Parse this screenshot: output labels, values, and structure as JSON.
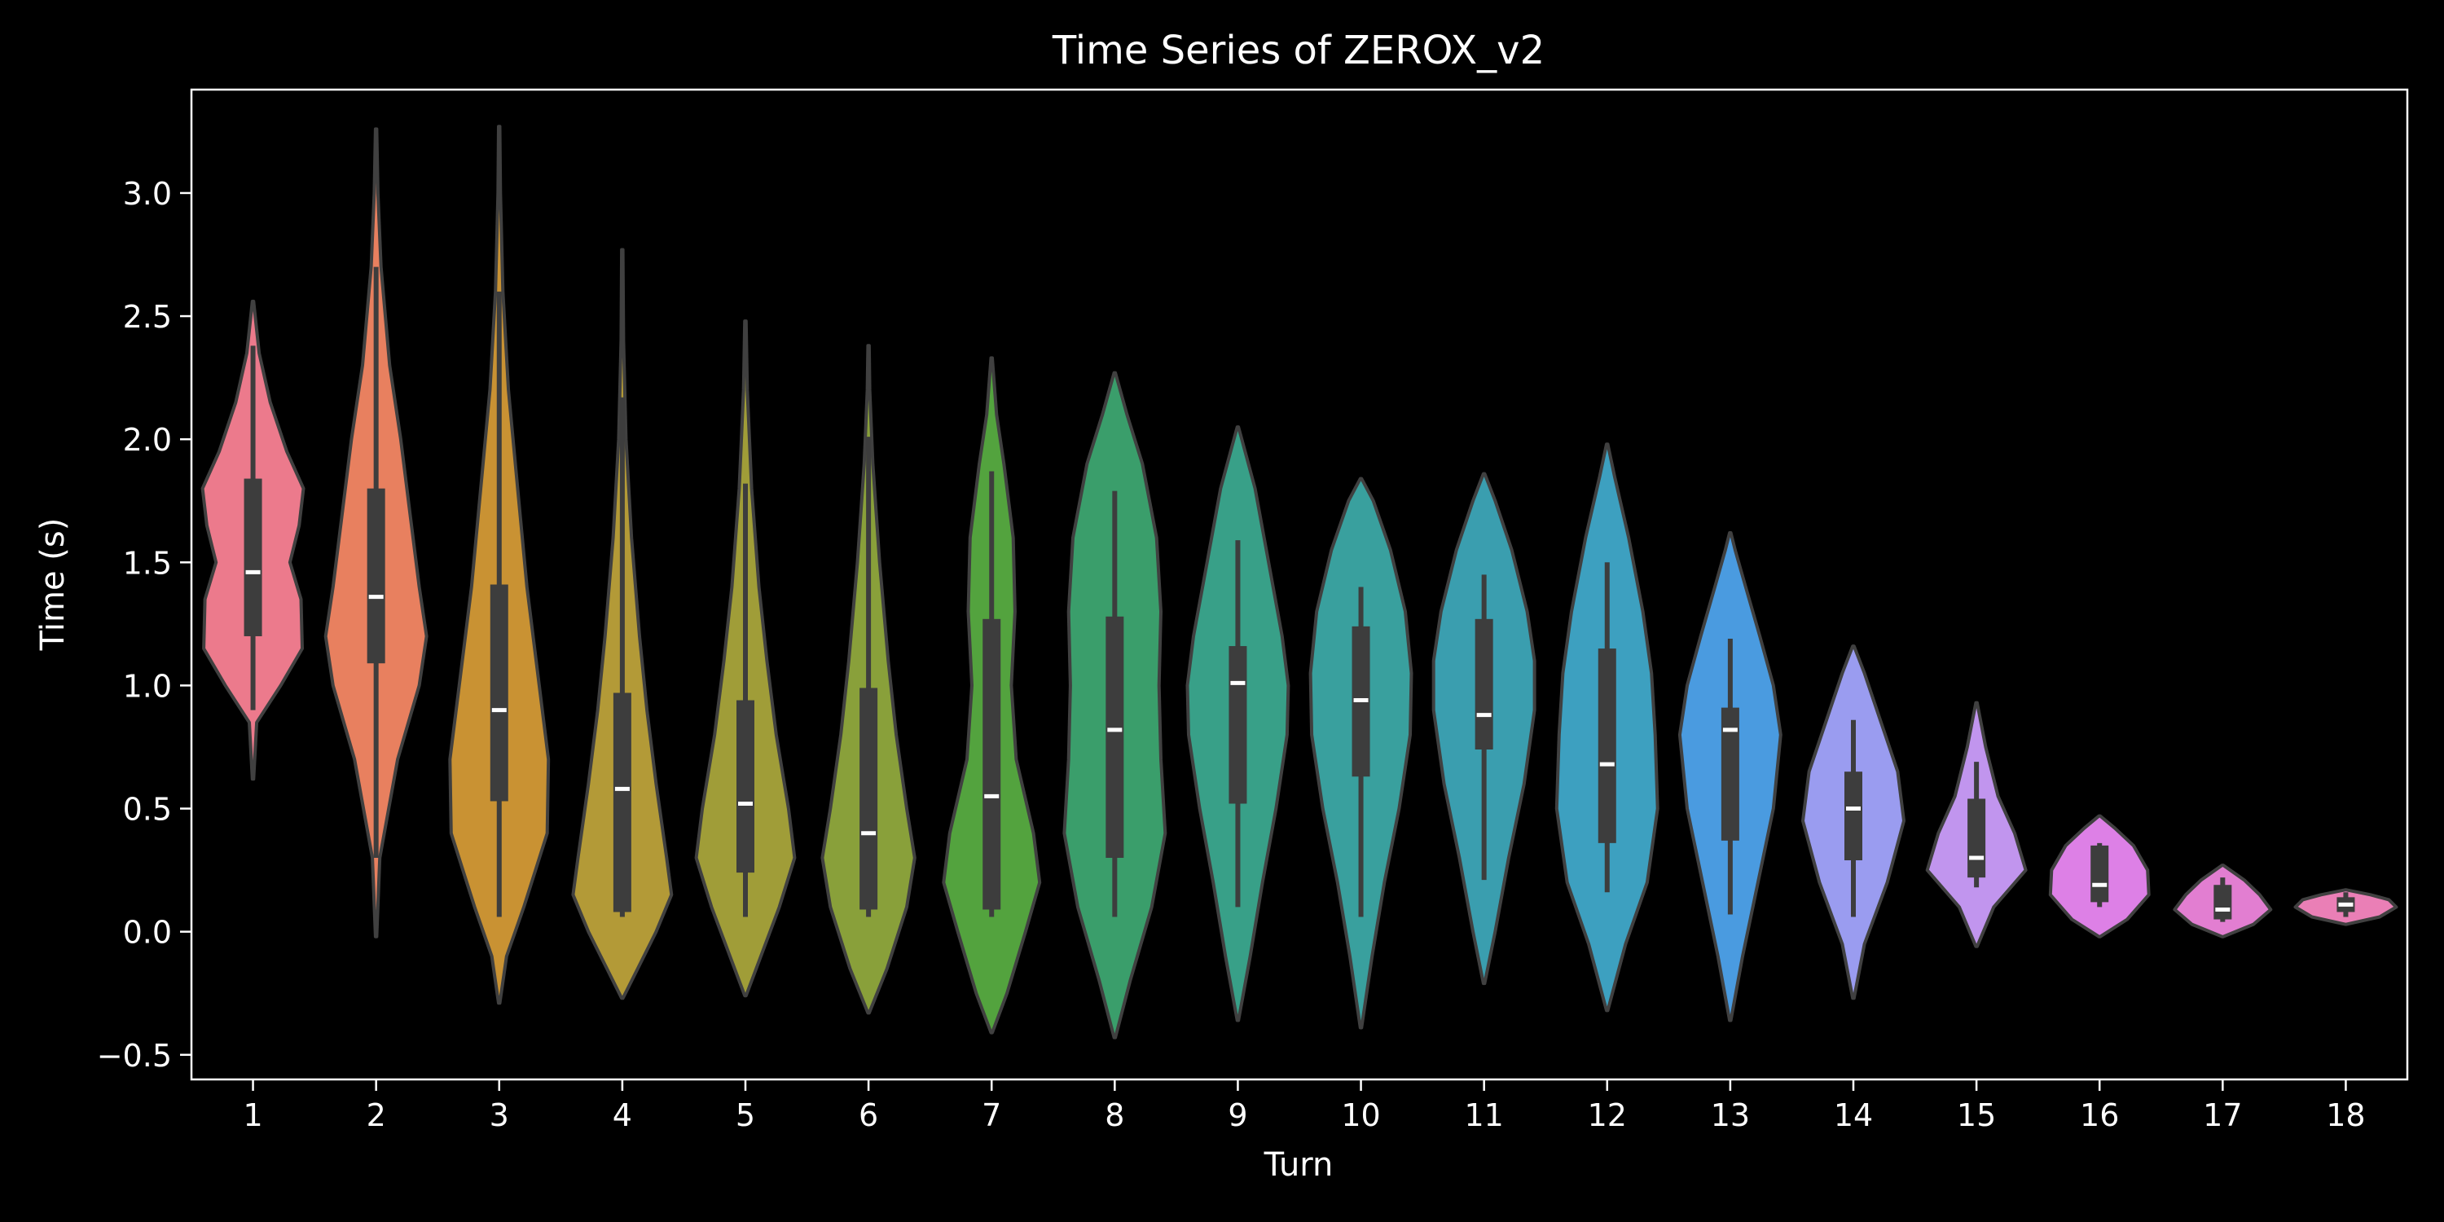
{
  "chart_data": {
    "type": "violin",
    "title": "Time Series of ZEROX_v2",
    "xlabel": "Turn",
    "ylabel": "Time (s)",
    "ylim": [
      -0.6,
      3.42
    ],
    "yticks": [
      -0.5,
      0.0,
      0.5,
      1.0,
      1.5,
      2.0,
      2.5,
      3.0
    ],
    "ytick_labels": [
      "−0.5",
      "0.0",
      "0.5",
      "1.0",
      "1.5",
      "2.0",
      "2.5",
      "3.0"
    ],
    "grid": false,
    "legend": "none",
    "background": "#000000",
    "inner_box_color": "#3d3d3d",
    "median_color": "#ffffff",
    "categories": [
      "1",
      "2",
      "3",
      "4",
      "5",
      "6",
      "7",
      "8",
      "9",
      "10",
      "11",
      "12",
      "13",
      "14",
      "15",
      "16",
      "17",
      "18"
    ],
    "violins": [
      {
        "category": "1",
        "color": "#ec7a8c",
        "extent": [
          0.62,
          2.56
        ],
        "q1": 1.2,
        "median": 1.46,
        "q3": 1.84,
        "whisker": [
          0.9,
          2.38
        ],
        "profile": [
          [
            0.62,
            0.01
          ],
          [
            0.85,
            0.06
          ],
          [
            1.0,
            0.45
          ],
          [
            1.15,
            0.8
          ],
          [
            1.35,
            0.78
          ],
          [
            1.5,
            0.6
          ],
          [
            1.65,
            0.75
          ],
          [
            1.8,
            0.82
          ],
          [
            1.95,
            0.55
          ],
          [
            2.15,
            0.28
          ],
          [
            2.35,
            0.1
          ],
          [
            2.56,
            0.01
          ]
        ]
      },
      {
        "category": "2",
        "color": "#e8805f",
        "extent": [
          -0.02,
          3.26
        ],
        "q1": 1.09,
        "median": 1.36,
        "q3": 1.8,
        "whisker": [
          0.3,
          2.7
        ],
        "profile": [
          [
            -0.02,
            0.01
          ],
          [
            0.3,
            0.06
          ],
          [
            0.7,
            0.35
          ],
          [
            1.0,
            0.7
          ],
          [
            1.2,
            0.82
          ],
          [
            1.4,
            0.7
          ],
          [
            1.7,
            0.55
          ],
          [
            2.0,
            0.4
          ],
          [
            2.3,
            0.22
          ],
          [
            2.7,
            0.08
          ],
          [
            3.0,
            0.03
          ],
          [
            3.26,
            0.01
          ]
        ]
      },
      {
        "category": "3",
        "color": "#c99233",
        "extent": [
          -0.29,
          3.27
        ],
        "q1": 0.53,
        "median": 0.9,
        "q3": 1.41,
        "whisker": [
          0.06,
          2.6
        ],
        "profile": [
          [
            -0.29,
            0.01
          ],
          [
            -0.1,
            0.12
          ],
          [
            0.1,
            0.4
          ],
          [
            0.4,
            0.78
          ],
          [
            0.7,
            0.8
          ],
          [
            1.0,
            0.65
          ],
          [
            1.4,
            0.45
          ],
          [
            1.8,
            0.3
          ],
          [
            2.2,
            0.15
          ],
          [
            2.6,
            0.06
          ],
          [
            3.0,
            0.02
          ],
          [
            3.27,
            0.01
          ]
        ]
      },
      {
        "category": "4",
        "color": "#b39a37",
        "extent": [
          -0.27,
          2.77
        ],
        "q1": 0.08,
        "median": 0.58,
        "q3": 0.97,
        "whisker": [
          0.06,
          2.17
        ],
        "profile": [
          [
            -0.27,
            0.01
          ],
          [
            -0.15,
            0.25
          ],
          [
            0.0,
            0.55
          ],
          [
            0.15,
            0.8
          ],
          [
            0.3,
            0.72
          ],
          [
            0.6,
            0.55
          ],
          [
            0.9,
            0.4
          ],
          [
            1.2,
            0.28
          ],
          [
            1.6,
            0.15
          ],
          [
            2.0,
            0.06
          ],
          [
            2.4,
            0.02
          ],
          [
            2.77,
            0.01
          ]
        ]
      },
      {
        "category": "5",
        "color": "#a09d38",
        "extent": [
          -0.26,
          2.48
        ],
        "q1": 0.24,
        "median": 0.52,
        "q3": 0.94,
        "whisker": [
          0.06,
          1.82
        ],
        "profile": [
          [
            -0.26,
            0.01
          ],
          [
            -0.1,
            0.25
          ],
          [
            0.1,
            0.55
          ],
          [
            0.3,
            0.8
          ],
          [
            0.5,
            0.7
          ],
          [
            0.8,
            0.5
          ],
          [
            1.1,
            0.35
          ],
          [
            1.4,
            0.22
          ],
          [
            1.8,
            0.1
          ],
          [
            2.2,
            0.03
          ],
          [
            2.48,
            0.01
          ]
        ]
      },
      {
        "category": "6",
        "color": "#89a03a",
        "extent": [
          -0.33,
          2.38
        ],
        "q1": 0.09,
        "median": 0.4,
        "q3": 0.99,
        "whisker": [
          0.06,
          2.01
        ],
        "profile": [
          [
            -0.33,
            0.01
          ],
          [
            -0.15,
            0.3
          ],
          [
            0.1,
            0.62
          ],
          [
            0.3,
            0.75
          ],
          [
            0.5,
            0.62
          ],
          [
            0.8,
            0.45
          ],
          [
            1.1,
            0.32
          ],
          [
            1.5,
            0.18
          ],
          [
            1.9,
            0.07
          ],
          [
            2.2,
            0.02
          ],
          [
            2.38,
            0.01
          ]
        ]
      },
      {
        "category": "7",
        "color": "#53a33e",
        "extent": [
          -0.41,
          2.33
        ],
        "q1": 0.09,
        "median": 0.55,
        "q3": 1.27,
        "whisker": [
          0.06,
          1.87
        ],
        "profile": [
          [
            -0.41,
            0.01
          ],
          [
            -0.25,
            0.25
          ],
          [
            0.0,
            0.55
          ],
          [
            0.2,
            0.78
          ],
          [
            0.4,
            0.68
          ],
          [
            0.7,
            0.4
          ],
          [
            1.0,
            0.32
          ],
          [
            1.3,
            0.38
          ],
          [
            1.6,
            0.35
          ],
          [
            1.9,
            0.2
          ],
          [
            2.1,
            0.08
          ],
          [
            2.33,
            0.01
          ]
        ]
      },
      {
        "category": "8",
        "color": "#3a9e6b",
        "extent": [
          -0.43,
          2.27
        ],
        "q1": 0.3,
        "median": 0.82,
        "q3": 1.28,
        "whisker": [
          0.06,
          1.79
        ],
        "profile": [
          [
            -0.43,
            0.01
          ],
          [
            -0.2,
            0.25
          ],
          [
            0.1,
            0.6
          ],
          [
            0.4,
            0.82
          ],
          [
            0.7,
            0.75
          ],
          [
            1.0,
            0.72
          ],
          [
            1.3,
            0.75
          ],
          [
            1.6,
            0.68
          ],
          [
            1.9,
            0.45
          ],
          [
            2.1,
            0.2
          ],
          [
            2.27,
            0.01
          ]
        ]
      },
      {
        "category": "9",
        "color": "#38a088",
        "extent": [
          -0.36,
          2.05
        ],
        "q1": 0.52,
        "median": 1.01,
        "q3": 1.16,
        "whisker": [
          0.1,
          1.59
        ],
        "profile": [
          [
            -0.36,
            0.01
          ],
          [
            -0.1,
            0.2
          ],
          [
            0.2,
            0.4
          ],
          [
            0.5,
            0.62
          ],
          [
            0.8,
            0.8
          ],
          [
            1.0,
            0.82
          ],
          [
            1.2,
            0.72
          ],
          [
            1.5,
            0.5
          ],
          [
            1.8,
            0.28
          ],
          [
            2.05,
            0.01
          ]
        ]
      },
      {
        "category": "10",
        "color": "#39a09e",
        "extent": [
          -0.39,
          1.84
        ],
        "q1": 0.63,
        "median": 0.94,
        "q3": 1.24,
        "whisker": [
          0.06,
          1.4
        ],
        "profile": [
          [
            -0.39,
            0.01
          ],
          [
            -0.1,
            0.18
          ],
          [
            0.2,
            0.38
          ],
          [
            0.5,
            0.62
          ],
          [
            0.8,
            0.8
          ],
          [
            1.05,
            0.82
          ],
          [
            1.3,
            0.72
          ],
          [
            1.55,
            0.48
          ],
          [
            1.75,
            0.2
          ],
          [
            1.84,
            0.01
          ]
        ]
      },
      {
        "category": "11",
        "color": "#3a9eaf",
        "extent": [
          -0.21,
          1.86
        ],
        "q1": 0.74,
        "median": 0.88,
        "q3": 1.27,
        "whisker": [
          0.21,
          1.45
        ],
        "profile": [
          [
            -0.21,
            0.01
          ],
          [
            0.0,
            0.18
          ],
          [
            0.3,
            0.4
          ],
          [
            0.6,
            0.65
          ],
          [
            0.9,
            0.82
          ],
          [
            1.1,
            0.82
          ],
          [
            1.3,
            0.7
          ],
          [
            1.55,
            0.45
          ],
          [
            1.75,
            0.18
          ],
          [
            1.86,
            0.01
          ]
        ]
      },
      {
        "category": "12",
        "color": "#3da0c0",
        "extent": [
          -0.32,
          1.98
        ],
        "q1": 0.36,
        "median": 0.68,
        "q3": 1.15,
        "whisker": [
          0.16,
          1.5
        ],
        "profile": [
          [
            -0.32,
            0.01
          ],
          [
            -0.05,
            0.3
          ],
          [
            0.2,
            0.65
          ],
          [
            0.5,
            0.82
          ],
          [
            0.8,
            0.78
          ],
          [
            1.05,
            0.72
          ],
          [
            1.3,
            0.58
          ],
          [
            1.6,
            0.35
          ],
          [
            1.85,
            0.12
          ],
          [
            1.98,
            0.01
          ]
        ]
      },
      {
        "category": "13",
        "color": "#4a9be0",
        "extent": [
          -0.36,
          1.62
        ],
        "q1": 0.37,
        "median": 0.82,
        "q3": 0.91,
        "whisker": [
          0.07,
          1.19
        ],
        "profile": [
          [
            -0.36,
            0.01
          ],
          [
            -0.1,
            0.2
          ],
          [
            0.2,
            0.45
          ],
          [
            0.5,
            0.7
          ],
          [
            0.8,
            0.82
          ],
          [
            1.0,
            0.7
          ],
          [
            1.2,
            0.48
          ],
          [
            1.4,
            0.25
          ],
          [
            1.55,
            0.08
          ],
          [
            1.62,
            0.01
          ]
        ]
      },
      {
        "category": "14",
        "color": "#9a9cf0",
        "extent": [
          -0.27,
          1.16
        ],
        "q1": 0.29,
        "median": 0.5,
        "q3": 0.65,
        "whisker": [
          0.06,
          0.86
        ],
        "profile": [
          [
            -0.27,
            0.01
          ],
          [
            -0.05,
            0.18
          ],
          [
            0.2,
            0.55
          ],
          [
            0.45,
            0.82
          ],
          [
            0.65,
            0.72
          ],
          [
            0.85,
            0.45
          ],
          [
            1.05,
            0.18
          ],
          [
            1.16,
            0.01
          ]
        ]
      },
      {
        "category": "15",
        "color": "#c195ee",
        "extent": [
          -0.06,
          0.93
        ],
        "q1": 0.22,
        "median": 0.3,
        "q3": 0.54,
        "whisker": [
          0.18,
          0.69
        ],
        "profile": [
          [
            -0.06,
            0.01
          ],
          [
            0.1,
            0.28
          ],
          [
            0.25,
            0.8
          ],
          [
            0.4,
            0.62
          ],
          [
            0.55,
            0.35
          ],
          [
            0.75,
            0.15
          ],
          [
            0.93,
            0.01
          ]
        ]
      },
      {
        "category": "16",
        "color": "#dd80e6",
        "extent": [
          -0.02,
          0.47
        ],
        "q1": 0.12,
        "median": 0.19,
        "q3": 0.35,
        "whisker": [
          0.1,
          0.36
        ],
        "profile": [
          [
            -0.02,
            0.01
          ],
          [
            0.05,
            0.45
          ],
          [
            0.15,
            0.8
          ],
          [
            0.25,
            0.78
          ],
          [
            0.35,
            0.55
          ],
          [
            0.42,
            0.25
          ],
          [
            0.47,
            0.01
          ]
        ]
      },
      {
        "category": "17",
        "color": "#e27ed1",
        "extent": [
          -0.02,
          0.27
        ],
        "q1": 0.05,
        "median": 0.09,
        "q3": 0.19,
        "whisker": [
          0.04,
          0.22
        ],
        "profile": [
          [
            -0.02,
            0.01
          ],
          [
            0.03,
            0.5
          ],
          [
            0.09,
            0.78
          ],
          [
            0.15,
            0.6
          ],
          [
            0.21,
            0.35
          ],
          [
            0.27,
            0.01
          ]
        ]
      },
      {
        "category": "18",
        "color": "#ea7fb6",
        "extent": [
          0.03,
          0.17
        ],
        "q1": 0.08,
        "median": 0.11,
        "q3": 0.14,
        "whisker": [
          0.06,
          0.16
        ],
        "profile": [
          [
            0.03,
            0.01
          ],
          [
            0.06,
            0.55
          ],
          [
            0.1,
            0.82
          ],
          [
            0.13,
            0.7
          ],
          [
            0.15,
            0.4
          ],
          [
            0.17,
            0.01
          ]
        ]
      }
    ]
  }
}
